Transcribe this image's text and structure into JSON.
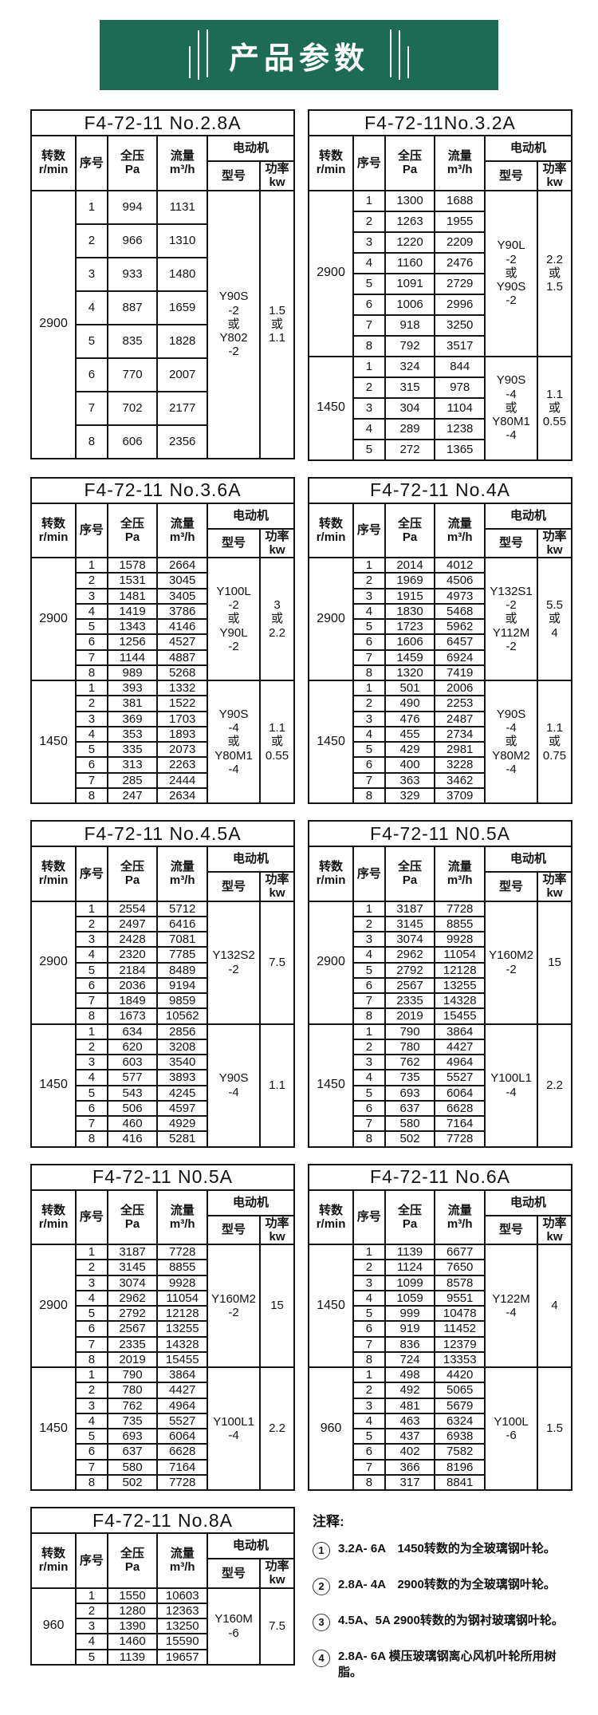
{
  "banner": {
    "title": "产品参数"
  },
  "table_headers": {
    "speed": "转数\nr/min",
    "seq": "序号",
    "pressure": "全压\nPa",
    "flow": "流量\nm³/h",
    "motor_group": "电动机",
    "model": "型号",
    "power": "功率\nkw"
  },
  "tables": [
    {
      "title": "F4-72-11 No.2.8A",
      "sections": [
        {
          "speed": "2900",
          "rows": [
            [
              "1",
              "994",
              "1131"
            ],
            [
              "2",
              "966",
              "1310"
            ],
            [
              "3",
              "933",
              "1480"
            ],
            [
              "4",
              "887",
              "1659"
            ],
            [
              "5",
              "835",
              "1828"
            ],
            [
              "6",
              "770",
              "2007"
            ],
            [
              "7",
              "702",
              "2177"
            ],
            [
              "8",
              "606",
              "2356"
            ]
          ],
          "motor": "Y90S\n-2\n或\nY802\n-2",
          "power": "1.5\n或\n1.1"
        }
      ]
    },
    {
      "title": "F4-72-11No.3.2A",
      "sections": [
        {
          "speed": "2900",
          "rows": [
            [
              "1",
              "1300",
              "1688"
            ],
            [
              "2",
              "1263",
              "1955"
            ],
            [
              "3",
              "1220",
              "2209"
            ],
            [
              "4",
              "1160",
              "2476"
            ],
            [
              "5",
              "1091",
              "2729"
            ],
            [
              "6",
              "1006",
              "2996"
            ],
            [
              "7",
              "918",
              "3250"
            ],
            [
              "8",
              "792",
              "3517"
            ]
          ],
          "motor": "Y90L\n-2\n或\nY90S\n-2",
          "power": "2.2\n或\n1.5"
        },
        {
          "speed": "1450",
          "rows": [
            [
              "1",
              "324",
              "844"
            ],
            [
              "2",
              "315",
              "978"
            ],
            [
              "3",
              "304",
              "1104"
            ],
            [
              "4",
              "289",
              "1238"
            ],
            [
              "5",
              "272",
              "1365"
            ]
          ],
          "motor": "Y90S\n-4\n或\nY80M1\n-4",
          "power": "1.1\n或\n0.55"
        }
      ]
    },
    {
      "title": "F4-72-11 No.3.6A",
      "sections": [
        {
          "speed": "2900",
          "rows": [
            [
              "1",
              "1578",
              "2664"
            ],
            [
              "2",
              "1531",
              "3045"
            ],
            [
              "3",
              "1481",
              "3405"
            ],
            [
              "4",
              "1419",
              "3786"
            ],
            [
              "5",
              "1343",
              "4146"
            ],
            [
              "6",
              "1256",
              "4527"
            ],
            [
              "7",
              "1144",
              "4887"
            ],
            [
              "8",
              "989",
              "5268"
            ]
          ],
          "motor": "Y100L\n-2\n或\nY90L\n-2",
          "power": "3\n或\n2.2"
        },
        {
          "speed": "1450",
          "rows": [
            [
              "1",
              "393",
              "1332"
            ],
            [
              "2",
              "381",
              "1522"
            ],
            [
              "3",
              "369",
              "1703"
            ],
            [
              "4",
              "353",
              "1893"
            ],
            [
              "5",
              "335",
              "2073"
            ],
            [
              "6",
              "313",
              "2263"
            ],
            [
              "7",
              "285",
              "2444"
            ],
            [
              "8",
              "247",
              "2634"
            ]
          ],
          "motor": "Y90S\n-4\n或\nY80M1\n-4",
          "power": "1.1\n或\n0.55"
        }
      ]
    },
    {
      "title": "F4-72-11 No.4A",
      "sections": [
        {
          "speed": "2900",
          "rows": [
            [
              "1",
              "2014",
              "4012"
            ],
            [
              "2",
              "1969",
              "4506"
            ],
            [
              "3",
              "1915",
              "4973"
            ],
            [
              "4",
              "1830",
              "5468"
            ],
            [
              "5",
              "1723",
              "5962"
            ],
            [
              "6",
              "1606",
              "6457"
            ],
            [
              "7",
              "1459",
              "6924"
            ],
            [
              "8",
              "1320",
              "7419"
            ]
          ],
          "motor": "Y132S1\n-2\n或\nY112M\n-2",
          "power": "5.5\n或\n4"
        },
        {
          "speed": "1450",
          "rows": [
            [
              "1",
              "501",
              "2006"
            ],
            [
              "2",
              "490",
              "2253"
            ],
            [
              "3",
              "476",
              "2487"
            ],
            [
              "4",
              "455",
              "2734"
            ],
            [
              "5",
              "429",
              "2981"
            ],
            [
              "6",
              "400",
              "3228"
            ],
            [
              "7",
              "363",
              "3462"
            ],
            [
              "8",
              "329",
              "3709"
            ]
          ],
          "motor": "Y90S\n-4\n或\nY80M2\n-4",
          "power": "1.1\n或\n0.75"
        }
      ]
    },
    {
      "title": "F4-72-11 No.4.5A",
      "sections": [
        {
          "speed": "2900",
          "rows": [
            [
              "1",
              "2554",
              "5712"
            ],
            [
              "2",
              "2497",
              "6416"
            ],
            [
              "3",
              "2428",
              "7081"
            ],
            [
              "4",
              "2320",
              "7785"
            ],
            [
              "5",
              "2184",
              "8489"
            ],
            [
              "6",
              "2036",
              "9194"
            ],
            [
              "7",
              "1849",
              "9859"
            ],
            [
              "8",
              "1673",
              "10562"
            ]
          ],
          "motor": "Y132S2\n-2",
          "power": "7.5"
        },
        {
          "speed": "1450",
          "rows": [
            [
              "1",
              "634",
              "2856"
            ],
            [
              "2",
              "620",
              "3208"
            ],
            [
              "3",
              "603",
              "3540"
            ],
            [
              "4",
              "577",
              "3893"
            ],
            [
              "5",
              "543",
              "4245"
            ],
            [
              "6",
              "506",
              "4597"
            ],
            [
              "7",
              "460",
              "4929"
            ],
            [
              "8",
              "416",
              "5281"
            ]
          ],
          "motor": "Y90S\n-4",
          "power": "1.1"
        }
      ]
    },
    {
      "title": "F4-72-11 N0.5A",
      "sections": [
        {
          "speed": "2900",
          "rows": [
            [
              "1",
              "3187",
              "7728"
            ],
            [
              "2",
              "3145",
              "8855"
            ],
            [
              "3",
              "3074",
              "9928"
            ],
            [
              "4",
              "2962",
              "11054"
            ],
            [
              "5",
              "2792",
              "12128"
            ],
            [
              "6",
              "2567",
              "13255"
            ],
            [
              "7",
              "2335",
              "14328"
            ],
            [
              "8",
              "2019",
              "15455"
            ]
          ],
          "motor": "Y160M2\n-2",
          "power": "15"
        },
        {
          "speed": "1450",
          "rows": [
            [
              "1",
              "790",
              "3864"
            ],
            [
              "2",
              "780",
              "4427"
            ],
            [
              "3",
              "762",
              "4964"
            ],
            [
              "4",
              "735",
              "5527"
            ],
            [
              "5",
              "693",
              "6064"
            ],
            [
              "6",
              "637",
              "6628"
            ],
            [
              "7",
              "580",
              "7164"
            ],
            [
              "8",
              "502",
              "7728"
            ]
          ],
          "motor": "Y100L1\n-4",
          "power": "2.2"
        }
      ]
    },
    {
      "title": "F4-72-11 N0.5A",
      "sections": [
        {
          "speed": "2900",
          "rows": [
            [
              "1",
              "3187",
              "7728"
            ],
            [
              "2",
              "3145",
              "8855"
            ],
            [
              "3",
              "3074",
              "9928"
            ],
            [
              "4",
              "2962",
              "11054"
            ],
            [
              "5",
              "2792",
              "12128"
            ],
            [
              "6",
              "2567",
              "13255"
            ],
            [
              "7",
              "2335",
              "14328"
            ],
            [
              "8",
              "2019",
              "15455"
            ]
          ],
          "motor": "Y160M2\n-2",
          "power": "15"
        },
        {
          "speed": "1450",
          "rows": [
            [
              "1",
              "790",
              "3864"
            ],
            [
              "2",
              "780",
              "4427"
            ],
            [
              "3",
              "762",
              "4964"
            ],
            [
              "4",
              "735",
              "5527"
            ],
            [
              "5",
              "693",
              "6064"
            ],
            [
              "6",
              "637",
              "6628"
            ],
            [
              "7",
              "580",
              "7164"
            ],
            [
              "8",
              "502",
              "7728"
            ]
          ],
          "motor": "Y100L1\n-4",
          "power": "2.2"
        }
      ]
    },
    {
      "title": "F4-72-11 No.6A",
      "sections": [
        {
          "speed": "1450",
          "rows": [
            [
              "1",
              "1139",
              "6677"
            ],
            [
              "2",
              "1124",
              "7650"
            ],
            [
              "3",
              "1099",
              "8578"
            ],
            [
              "4",
              "1059",
              "9551"
            ],
            [
              "5",
              "999",
              "10478"
            ],
            [
              "6",
              "919",
              "11452"
            ],
            [
              "7",
              "836",
              "12379"
            ],
            [
              "8",
              "724",
              "13353"
            ]
          ],
          "motor": "Y122M\n-4",
          "power": "4"
        },
        {
          "speed": "960",
          "rows": [
            [
              "1",
              "498",
              "4420"
            ],
            [
              "2",
              "492",
              "5065"
            ],
            [
              "3",
              "481",
              "5679"
            ],
            [
              "4",
              "463",
              "6324"
            ],
            [
              "5",
              "437",
              "6938"
            ],
            [
              "6",
              "402",
              "7582"
            ],
            [
              "7",
              "366",
              "8196"
            ],
            [
              "8",
              "317",
              "8841"
            ]
          ],
          "motor": "Y100L\n-6",
          "power": "1.5"
        }
      ]
    },
    {
      "title": "F4-72-11 No.8A",
      "sections": [
        {
          "speed": "960",
          "rows": [
            [
              "1",
              "1550",
              "10603"
            ],
            [
              "2",
              "1280",
              "12363"
            ],
            [
              "3",
              "1390",
              "13250"
            ],
            [
              "4",
              "1460",
              "15590"
            ],
            [
              "5",
              "1139",
              "19657"
            ]
          ],
          "motor": "Y160M\n-6",
          "power": "7.5"
        }
      ]
    }
  ],
  "notes": {
    "title": "注释:",
    "items": [
      {
        "num": "1",
        "text": "3.2A- 6A　1450转数的为全玻璃钢叶轮。"
      },
      {
        "num": "2",
        "text": "2.8A- 4A　2900转数的为全玻璃钢叶轮。"
      },
      {
        "num": "3",
        "text": "4.5A、5A  2900转数的为钢衬玻璃钢叶轮。"
      },
      {
        "num": "4",
        "text": "2.8A- 6A  模压玻璃钢离心风机叶轮所用树脂。"
      }
    ]
  }
}
